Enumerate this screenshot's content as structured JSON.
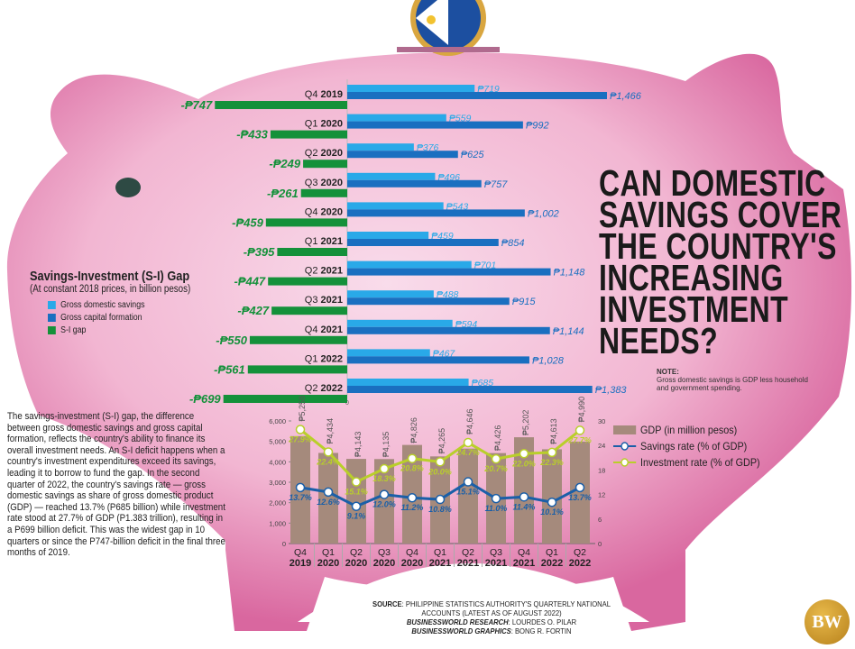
{
  "title": "CAN DOMESTIC SAVINGS COVER THE COUNTRY'S INCREASING INVESTMENT NEEDS?",
  "title_lines": [
    "CAN DOMESTIC",
    "SAVINGS COVER",
    "THE COUNTRY'S",
    "INCREASING",
    "INVESTMENT",
    "NEEDS?"
  ],
  "note": {
    "label": "NOTE:",
    "text": "Gross domestic savings is GDP less household and government spending."
  },
  "legend": {
    "title": "Savings-Investment (S-I) Gap",
    "subtitle": "(At constant 2018 prices, in billion pesos)",
    "items": [
      {
        "label": "Gross domestic savings",
        "color": "#29a9e8"
      },
      {
        "label": "Gross capital formation",
        "color": "#1a6fc0"
      },
      {
        "label": "S-I gap",
        "color": "#14913a"
      }
    ]
  },
  "body_text": "The savings-investment (S-I) gap, the difference between gross domestic savings and gross capital formation, reflects the country's ability to finance its overall investment needs. An S-I deficit happens when a country's investment expenditures exceed its savings, leading it to borrow to fund the gap. In the second quarter of 2022, the country's savings rate — gross domestic savings as share of gross domestic product (GDP) — reached 13.7% (P685 billion) while investment rate stood at 27.7% of GDP (P1.383 trillion), resulting in a P699 billion deficit. This was the widest gap in 10 quarters or since the P747-billion deficit in the final three months of 2019.",
  "source": {
    "line1_label": "SOURCE",
    "line1": "PHILIPPINE STATISTICS AUTHORITY'S QUARTERLY NATIONAL ACCOUNTS (LATEST AS OF AUGUST 2022)",
    "research_label": "BUSINESSWORLD RESEARCH",
    "research": "LOURDES O. PILAR",
    "graphics_label": "BUSINESSWORLD GRAPHICS",
    "graphics": "BONG R. FORTIN"
  },
  "logo": "BW",
  "chart_data": [
    {
      "type": "bar",
      "orientation": "horizontal",
      "title": "Savings-Investment (S-I) Gap",
      "subtitle": "(At constant 2018 prices, in billion pesos)",
      "categories": [
        [
          "Q4",
          "2019"
        ],
        [
          "Q1",
          "2020"
        ],
        [
          "Q2",
          "2020"
        ],
        [
          "Q3",
          "2020"
        ],
        [
          "Q4",
          "2020"
        ],
        [
          "Q1",
          "2021"
        ],
        [
          "Q2",
          "2021"
        ],
        [
          "Q3",
          "2021"
        ],
        [
          "Q4",
          "2021"
        ],
        [
          "Q1",
          "2022"
        ],
        [
          "Q2",
          "2022"
        ]
      ],
      "series": [
        {
          "name": "Gross domestic savings",
          "color": "#29a9e8",
          "values": [
            719,
            559,
            376,
            496,
            543,
            459,
            701,
            488,
            594,
            467,
            685
          ]
        },
        {
          "name": "Gross capital formation",
          "color": "#1a6fc0",
          "values": [
            1466,
            992,
            625,
            757,
            1002,
            854,
            1148,
            915,
            1144,
            1028,
            1383
          ]
        },
        {
          "name": "S-I gap",
          "color": "#14913a",
          "values": [
            -747,
            -433,
            -249,
            -261,
            -459,
            -395,
            -447,
            -427,
            -550,
            -561,
            -699
          ]
        }
      ],
      "axis_zero_label": "0",
      "currency": "₱"
    },
    {
      "type": "bar+line",
      "categories": [
        [
          "Q4",
          "2019"
        ],
        [
          "Q1",
          "2020"
        ],
        [
          "Q2",
          "2020"
        ],
        [
          "Q3",
          "2020"
        ],
        [
          "Q4",
          "2020"
        ],
        [
          "Q1",
          "2021"
        ],
        [
          "Q2",
          "2021"
        ],
        [
          "Q3",
          "2021"
        ],
        [
          "Q4",
          "2021"
        ],
        [
          "Q1",
          "2022"
        ],
        [
          "Q2",
          "2022"
        ]
      ],
      "left_axis": {
        "ylim": [
          0,
          6000
        ],
        "ticks": [
          "0",
          "1,000",
          "2,000",
          "3,000",
          "4,000",
          "5,000",
          "6,000"
        ]
      },
      "right_axis": {
        "ylim": [
          0,
          30
        ],
        "ticks": [
          "0",
          "6",
          "12",
          "18",
          "24",
          "30"
        ]
      },
      "series": [
        {
          "name": "GDP (in million pesos)",
          "type": "bar",
          "color": "#a58a7c",
          "values": [
            5258,
            4434,
            4143,
            4135,
            4826,
            4265,
            4646,
            4426,
            5202,
            4613,
            4990
          ],
          "labels": [
            "₱5,258",
            "₱4,434",
            "₱4,143",
            "₱4,135",
            "₱4,826",
            "₱4,265",
            "₱4,646",
            "₱4,426",
            "₱5,202",
            "₱4,613",
            "₱4,990"
          ]
        },
        {
          "name": "Savings rate (% of GDP)",
          "type": "line",
          "axis": "right",
          "color": "#1a5fa8",
          "values": [
            13.7,
            12.6,
            9.1,
            12.0,
            11.2,
            10.8,
            15.1,
            11.0,
            11.4,
            10.1,
            13.7
          ]
        },
        {
          "name": "Investment rate (% of GDP)",
          "type": "line",
          "axis": "right",
          "color": "#b9cf2a",
          "values": [
            27.9,
            22.4,
            15.1,
            18.3,
            20.8,
            20.0,
            24.7,
            20.7,
            22.0,
            22.3,
            27.7
          ]
        }
      ]
    }
  ]
}
